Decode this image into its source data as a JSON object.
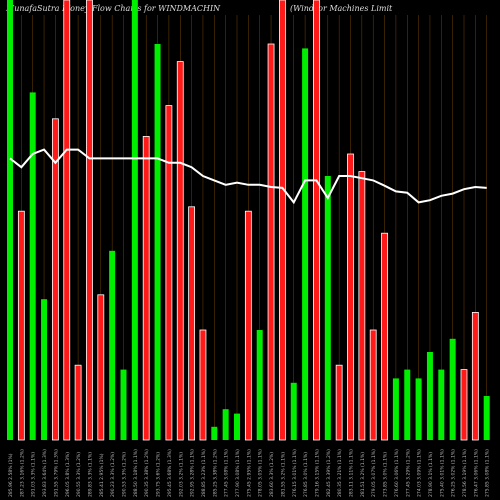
{
  "title_left": "MunafaSutra  Money  Flow  Charts for WINDMACHIN",
  "title_right": "(Windsor Machines Limit",
  "colors": {
    "background": "#000000",
    "up": "#00ee00",
    "down": "#ff1a1a",
    "line": "#ffffff",
    "grid": "#cc7a00",
    "label": "#bbbbbb"
  },
  "chart_data": {
    "type": "bar",
    "ylim": [
      0,
      100
    ],
    "line_ylim": [
      0,
      100
    ],
    "categories": [
      "285.96 2.58% (1%)",
      "287.23 3.16% (1.2%)",
      "291.03 3.3% (1.1%)",
      "293.83 3.64% (1.3%)",
      "291.55 3.79% (1.3%)",
      "296.05 3.8% (1.3%)",
      "290.55 3.3% (1.2%)",
      "289.83 3.3% (1.1%)",
      "285.41 2.95% (1%)",
      "290.23 3.3% (1.2%)",
      "290.53 3.3% (1.2%)",
      "288.50 3.18% (1.1%)",
      "290.35 3.38% (1.2%)",
      "293.75 3.6% (1.2%)",
      "295.45 3.68% (1.3%)",
      "292.03 3.2% (1.1%)",
      "292.95 3.28% (1.1%)",
      "288.85 3.23% (1.1%)",
      "285.25 3.38% (1.2%)",
      "277.45 3.08% (1.1%)",
      "277.90 3.08% (1.1%)",
      "275.45 2.95% (1.1%)",
      "278.05 3.05% (1.1%)",
      "283.60 3.3% (1.2%)",
      "281.55 3.2% (1.1%)",
      "276.15 3.01% (1.1%)",
      "276.85 3.0% (1.1%)",
      "279.16 3.15% (1.1%)",
      "282.45 3.39% (1.2%)",
      "280.35 3.21% (1.1%)",
      "283.11 3.11% (1.1%)",
      "281.51 3.2% (1.1%)",
      "279.05 3.07% (1.1%)",
      "273.85 3.0% (1.1%)",
      "276.60 3.06% (1.1%)",
      "277.45 3.29% (1.2%)",
      "274.03 3.09% (1.1%)",
      "278.90 3.1% (1.1%)",
      "275.40 3.01% (1.1%)",
      "276.25 3.02% (1.1%)",
      "278.56 3.19% (1.1%)",
      "276.47 3.06% (1.1%)",
      "275.85 3.08% (1.1%)"
    ],
    "values": [
      100,
      52,
      79,
      32,
      73,
      100,
      17,
      100,
      33,
      43,
      16,
      100,
      69,
      90,
      76,
      86,
      53,
      25,
      3,
      7,
      6,
      52,
      25,
      90,
      100,
      13,
      89,
      100,
      60,
      17,
      65,
      61,
      25,
      47,
      14,
      16,
      14,
      20,
      16,
      23,
      16,
      29,
      10
    ],
    "directions": [
      "up",
      "down",
      "up",
      "up",
      "down",
      "down",
      "down",
      "down",
      "down",
      "up",
      "up",
      "up",
      "down",
      "up",
      "down",
      "down",
      "down",
      "down",
      "up",
      "up",
      "up",
      "down",
      "up",
      "down",
      "down",
      "up",
      "up",
      "down",
      "up",
      "down",
      "down",
      "down",
      "down",
      "down",
      "up",
      "up",
      "up",
      "up",
      "up",
      "up",
      "down",
      "down",
      "up"
    ],
    "line_values": [
      64,
      62,
      65,
      66,
      63,
      66,
      66,
      64,
      64,
      64,
      64,
      64,
      64,
      64,
      63,
      63,
      62,
      60,
      59,
      58,
      58.5,
      58,
      58,
      57.5,
      57.3,
      54,
      59,
      59,
      55,
      60,
      60,
      59.5,
      59,
      57.8,
      56.5,
      56.2,
      54,
      54.5,
      55.5,
      56,
      57,
      57.5,
      57.3
    ]
  }
}
